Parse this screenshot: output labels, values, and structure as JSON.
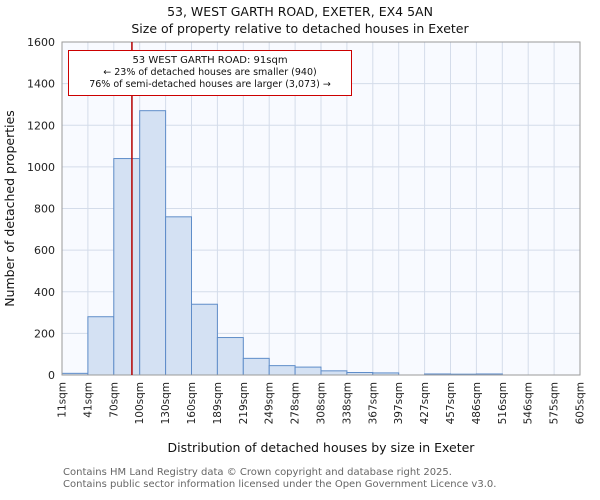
{
  "title": "53, WEST GARTH ROAD, EXETER, EX4 5AN",
  "subtitle": "Size of property relative to detached houses in Exeter",
  "annotation": {
    "line1": "53 WEST GARTH ROAD: 91sqm",
    "line2": "← 23% of detached houses are smaller (940)",
    "line3": "76% of semi-detached houses are larger (3,073) →",
    "marker_value_sqm": 91
  },
  "footer_line1": "Contains HM Land Registry data © Crown copyright and database right 2025.",
  "footer_line2": "Contains public sector information licensed under the Open Government Licence v3.0.",
  "chart_data": {
    "type": "bar",
    "title": "53, WEST GARTH ROAD, EXETER, EX4 5AN — Size of property relative to detached houses in Exeter",
    "xlabel": "Distribution of detached houses by size in Exeter",
    "ylabel": "Number of detached properties",
    "bin_edges_sqm": [
      11,
      41,
      70,
      100,
      130,
      160,
      189,
      219,
      249,
      278,
      308,
      338,
      367,
      397,
      427,
      457,
      486,
      516,
      546,
      575,
      605
    ],
    "tick_labels": [
      "11sqm",
      "41sqm",
      "70sqm",
      "100sqm",
      "130sqm",
      "160sqm",
      "189sqm",
      "219sqm",
      "249sqm",
      "278sqm",
      "308sqm",
      "338sqm",
      "367sqm",
      "397sqm",
      "427sqm",
      "457sqm",
      "486sqm",
      "516sqm",
      "546sqm",
      "575sqm",
      "605sqm"
    ],
    "values": [
      8,
      280,
      1040,
      1270,
      760,
      340,
      180,
      80,
      45,
      38,
      20,
      12,
      10,
      0,
      5,
      4,
      5,
      0,
      0,
      0
    ],
    "ylim": [
      0,
      1600
    ],
    "ytick_step": 200,
    "grid": true,
    "legend": "none",
    "marker_value_sqm": 91,
    "colors": {
      "bar_fill": "#d4e1f3",
      "bar_stroke": "#5f8dc9",
      "grid": "#d4dcea",
      "plot_bg": "#f8faff",
      "axis": "#9a9a9a",
      "marker": "#b30000",
      "tick_text": "#222222"
    }
  }
}
